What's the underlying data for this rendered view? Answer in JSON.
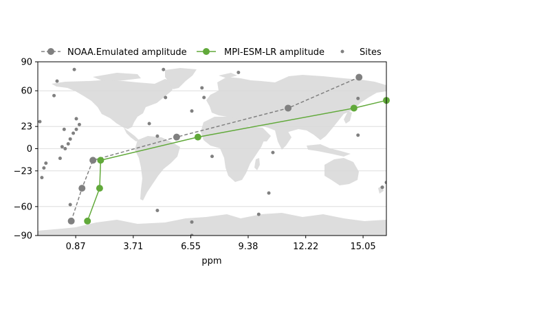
{
  "chart_data": {
    "type": "line",
    "title": "",
    "xlabel": "ppm",
    "ylabel": "",
    "xlim": [
      -1.0,
      16.2
    ],
    "ylim": [
      -90,
      90
    ],
    "x_ticks": [
      0.87,
      3.71,
      6.55,
      9.38,
      12.22,
      15.05
    ],
    "x_tick_labels": [
      "0.87",
      "3.71",
      "6.55",
      "9.38",
      "12.22",
      "15.05"
    ],
    "y_ticks": [
      90,
      60,
      23,
      0,
      -23,
      -60,
      -90
    ],
    "y_tick_labels": [
      "90",
      "60",
      "23",
      "0",
      "−23",
      "−60",
      "−90"
    ],
    "grid": "horizontal",
    "legend_position": "top",
    "background": "world-map",
    "series": [
      {
        "name": "NOAA.Emulated amplitude",
        "color": "#808080",
        "line_style": "dashed",
        "x": [
          0.65,
          1.18,
          1.72,
          5.85,
          11.35,
          14.85
        ],
        "y": [
          -75,
          -41,
          -12,
          12,
          42,
          74
        ]
      },
      {
        "name": "MPI-ESM-LR amplitude",
        "color": "#61a93a",
        "line_style": "solid",
        "x": [
          1.45,
          2.05,
          2.1,
          6.9,
          14.6,
          16.2
        ],
        "y": [
          -75,
          -41,
          -12,
          12,
          42,
          50
        ]
      },
      {
        "name": "Sites",
        "color": "#808080",
        "line_style": "none",
        "x": [
          -0.9,
          -0.8,
          -0.7,
          -0.6,
          -0.2,
          -0.05,
          0.1,
          0.2,
          0.35,
          0.5,
          0.6,
          0.75,
          0.9,
          1.05,
          0.3,
          0.8,
          0.9,
          5.2,
          4.5,
          4.9,
          6.6,
          7.1,
          7.6,
          8.9,
          5.3,
          7.2,
          10.6,
          10.4,
          9.9,
          4.9,
          6.6,
          6.6,
          14.8,
          16.0,
          14.8,
          16.0,
          16.2,
          0.7,
          0.6
        ],
        "y": [
          28,
          -30,
          -20,
          -15,
          55,
          70,
          -10,
          2,
          0,
          5,
          10,
          16,
          20,
          25,
          20,
          82,
          31,
          82,
          26,
          13,
          39,
          63,
          -8,
          79,
          53,
          53,
          -4,
          -46,
          -68,
          -64,
          -76,
          -90,
          14,
          -40,
          52,
          -40,
          -35,
          -75,
          -58
        ]
      }
    ]
  }
}
